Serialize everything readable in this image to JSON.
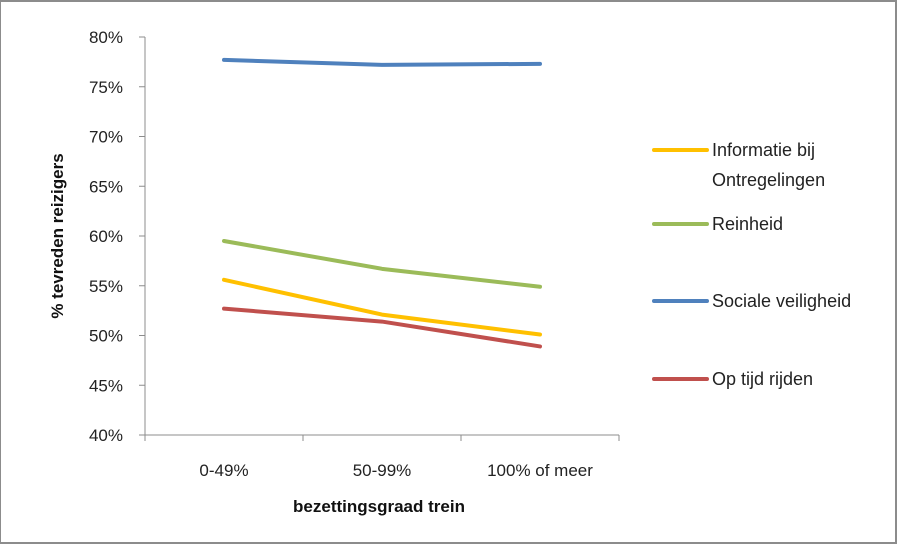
{
  "chart_data": {
    "type": "line",
    "title": "",
    "xlabel": "bezettingsgraad trein",
    "ylabel": "% tevreden reizigers",
    "categories": [
      "0-49%",
      "50-99%",
      "100% of meer"
    ],
    "ylim": [
      0.4,
      0.8
    ],
    "yticks": [
      "40%",
      "45%",
      "50%",
      "55%",
      "60%",
      "65%",
      "70%",
      "75%",
      "80%"
    ],
    "grid": false,
    "legend_position": "right",
    "series": [
      {
        "name": "Informatie bij Ontregelingen",
        "name_lines": [
          "Informatie bij",
          "Ontregelingen"
        ],
        "color": "#ffc000",
        "values": [
          0.556,
          0.521,
          0.501
        ]
      },
      {
        "name": "Reinheid",
        "name_lines": [
          "Reinheid"
        ],
        "color": "#9bbb59",
        "values": [
          0.595,
          0.567,
          0.549
        ]
      },
      {
        "name": "Sociale veiligheid",
        "name_lines": [
          "Sociale veiligheid"
        ],
        "color": "#4f81bd",
        "values": [
          0.777,
          0.772,
          0.773
        ]
      },
      {
        "name": "Op tijd rijden",
        "name_lines": [
          "Op tijd rijden"
        ],
        "color": "#c0504d",
        "values": [
          0.527,
          0.514,
          0.489
        ]
      }
    ]
  }
}
